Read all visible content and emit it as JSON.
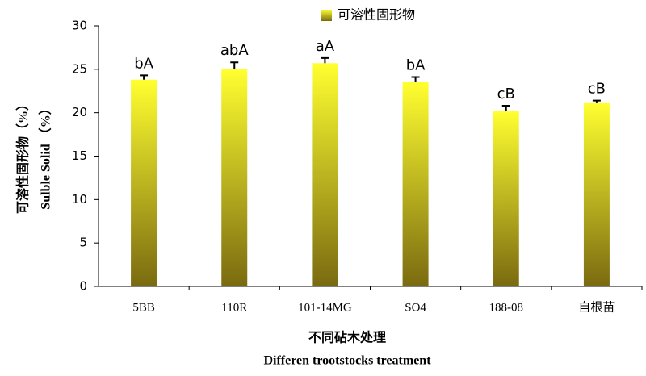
{
  "chart_data": {
    "type": "bar",
    "categories": [
      "5BB",
      "110R",
      "101-14MG",
      "SO4",
      "188-08",
      "自根苗"
    ],
    "series": [
      {
        "name": "可溶性固形物",
        "color": [
          "#ffff30",
          "#7a6a10"
        ],
        "values": [
          23.8,
          25.0,
          25.7,
          23.5,
          20.2,
          21.1
        ],
        "errors": [
          0.5,
          0.8,
          0.6,
          0.6,
          0.6,
          0.3
        ],
        "significance": [
          "bA",
          "abA",
          "aA",
          "bA",
          "cB",
          "cB"
        ]
      }
    ],
    "ylim": [
      0,
      30
    ],
    "yticks": [
      0,
      5,
      10,
      15,
      20,
      25,
      30
    ],
    "y_label": [
      "可溶性固形物（%）",
      "Sulble Solid （%）"
    ],
    "x_label": [
      "不同砧木处理",
      "Differen trootstocks  treatment"
    ]
  }
}
